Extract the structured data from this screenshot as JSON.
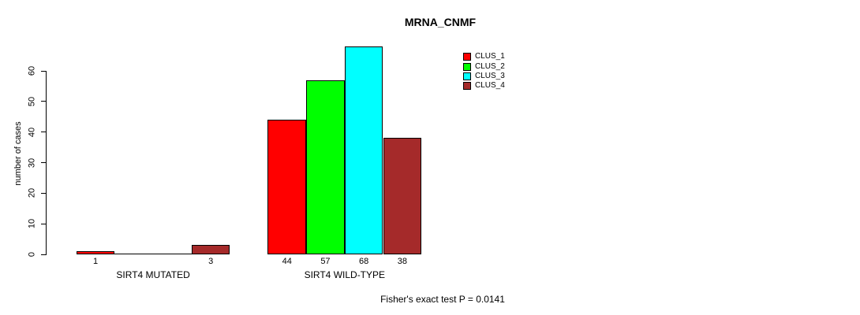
{
  "chart_data": {
    "type": "bar",
    "title": "MRNA_CNMF",
    "ylabel": "number of cases",
    "xlabel": "",
    "ylim": [
      0,
      68
    ],
    "yticks": [
      0,
      10,
      20,
      30,
      40,
      50,
      60
    ],
    "grid": false,
    "legend_position": "top-right-inside",
    "categories": [
      "SIRT4 MUTATED",
      "SIRT4 WILD-TYPE"
    ],
    "series": [
      {
        "name": "CLUS_1",
        "color": "#ff0000",
        "values": [
          1,
          44
        ]
      },
      {
        "name": "CLUS_2",
        "color": "#00ff00",
        "values": [
          0,
          57
        ]
      },
      {
        "name": "CLUS_3",
        "color": "#00ffff",
        "values": [
          0,
          68
        ]
      },
      {
        "name": "CLUS_4",
        "color": "#a52a2a",
        "values": [
          3,
          38
        ]
      }
    ],
    "bar_value_labels": [
      [
        "1",
        "",
        "",
        "3"
      ],
      [
        "44",
        "57",
        "68",
        "38"
      ]
    ],
    "annotation": "Fisher's exact test P = 0.0141",
    "colors": {
      "axis": "#000000",
      "background": "#ffffff",
      "text": "#000000"
    }
  }
}
